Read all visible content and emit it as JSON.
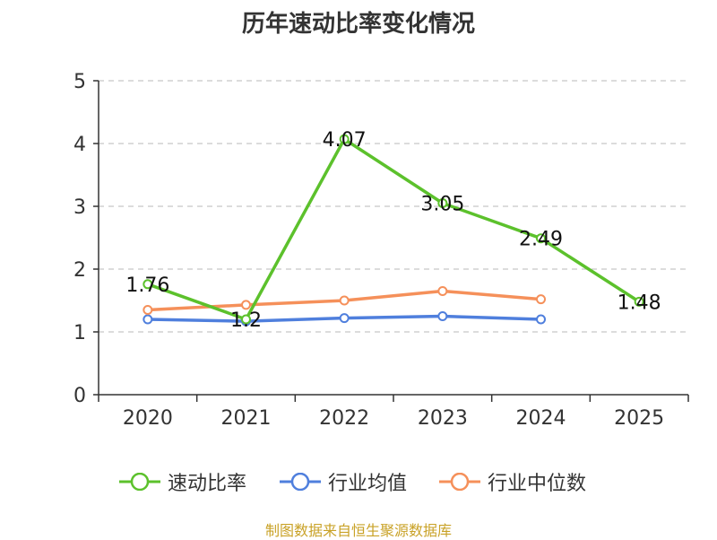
{
  "chart_data": {
    "type": "line",
    "title": "历年速动比率变化情况",
    "categories": [
      "2020",
      "2021",
      "2022",
      "2023",
      "2024",
      "2025"
    ],
    "ylim": [
      0,
      5
    ],
    "yticks": [
      "0",
      "1",
      "2",
      "3",
      "4",
      "5"
    ],
    "grid": true,
    "legend_position": "bottom",
    "series": [
      {
        "name": "速动比率",
        "color": "#5cc12c",
        "values": [
          1.76,
          1.2,
          4.07,
          3.05,
          2.49,
          1.48
        ],
        "labels": [
          "1.76",
          "1.2",
          "4.07",
          "3.05",
          "2.49",
          "1.48"
        ]
      },
      {
        "name": "行业均值",
        "color": "#4f7fdd",
        "values": [
          1.2,
          1.17,
          1.22,
          1.25,
          1.2,
          null
        ]
      },
      {
        "name": "行业中位数",
        "color": "#f5905a",
        "values": [
          1.35,
          1.43,
          1.5,
          1.65,
          1.52,
          null
        ]
      }
    ]
  },
  "source": "制图数据来自恒生聚源数据库"
}
